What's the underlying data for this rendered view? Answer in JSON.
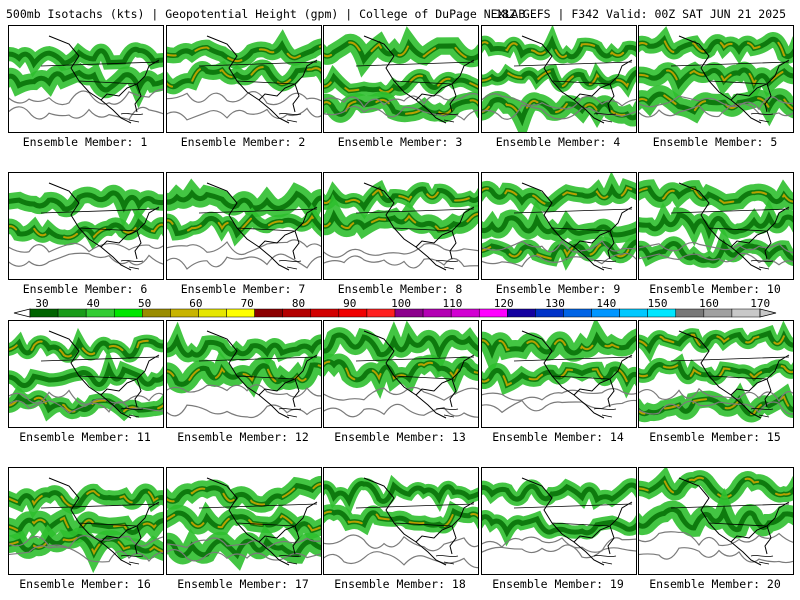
{
  "header": {
    "left": "500mb Isotachs (kts) | Geopotential Height (gpm) | College of DuPage NEXLAB",
    "right": "18Z GEFS | F342 Valid: 00Z SAT JUN 21 2025"
  },
  "members": [
    {
      "label": "Ensemble Member: 1"
    },
    {
      "label": "Ensemble Member: 2"
    },
    {
      "label": "Ensemble Member: 3"
    },
    {
      "label": "Ensemble Member: 4"
    },
    {
      "label": "Ensemble Member: 5"
    },
    {
      "label": "Ensemble Member: 6"
    },
    {
      "label": "Ensemble Member: 7"
    },
    {
      "label": "Ensemble Member: 8"
    },
    {
      "label": "Ensemble Member: 9"
    },
    {
      "label": "Ensemble Member: 10"
    },
    {
      "label": "Ensemble Member: 11"
    },
    {
      "label": "Ensemble Member: 12"
    },
    {
      "label": "Ensemble Member: 13"
    },
    {
      "label": "Ensemble Member: 14"
    },
    {
      "label": "Ensemble Member: 15"
    },
    {
      "label": "Ensemble Member: 16"
    },
    {
      "label": "Ensemble Member: 17"
    },
    {
      "label": "Ensemble Member: 18"
    },
    {
      "label": "Ensemble Member: 19"
    },
    {
      "label": "Ensemble Member: 20"
    }
  ],
  "colorbar": {
    "labels": [
      "30",
      "40",
      "50",
      "60",
      "70",
      "80",
      "90",
      "100",
      "110",
      "120",
      "130",
      "140",
      "150",
      "160",
      "170"
    ],
    "colors": [
      "#006400",
      "#1a9b1a",
      "#33cc33",
      "#00e600",
      "#9a8c00",
      "#c8b400",
      "#e6e600",
      "#ffff00",
      "#8c0000",
      "#b40000",
      "#d20000",
      "#f00000",
      "#ff2020",
      "#8c008c",
      "#b400b4",
      "#d200d2",
      "#ff00ff",
      "#1400a0",
      "#0032c8",
      "#0064e6",
      "#0096ff",
      "#00c8ff",
      "#00e6ff",
      "#787878",
      "#a0a0a0",
      "#c8c8c8"
    ]
  }
}
